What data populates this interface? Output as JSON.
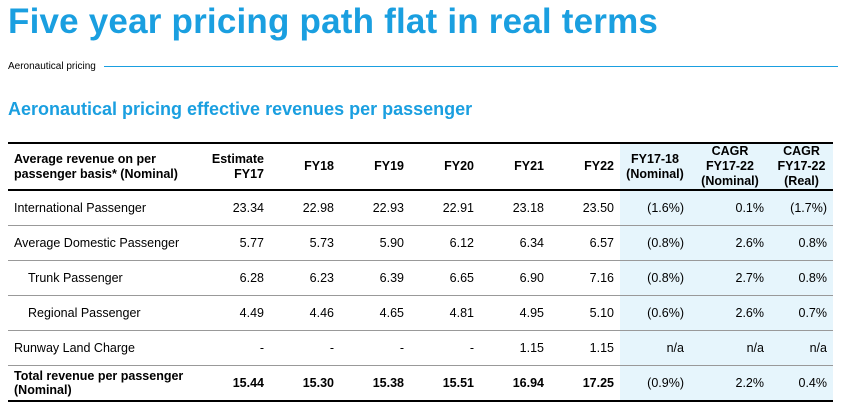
{
  "header": {
    "title": "Five year pricing path flat in real terms",
    "subtitle": "Aeronautical pricing"
  },
  "section": {
    "title": "Aeronautical pricing effective revenues per passenger"
  },
  "colors": {
    "accent": "#1a9fe0",
    "shade": "#e6f5fc"
  },
  "table": {
    "columns": [
      "Average revenue on per passenger basis* (Nominal)",
      "Estimate FY17",
      "FY18",
      "FY19",
      "FY20",
      "FY21",
      "FY22",
      "FY17-18 (Nominal)",
      "CAGR FY17-22 (Nominal)",
      "CAGR FY17-22 (Real)"
    ],
    "rows": [
      {
        "label": "International Passenger",
        "values": [
          "23.34",
          "22.98",
          "22.93",
          "22.91",
          "23.18",
          "23.50",
          "(1.6%)",
          "0.1%",
          "(1.7%)"
        ]
      },
      {
        "label": "Average Domestic Passenger",
        "values": [
          "5.77",
          "5.73",
          "5.90",
          "6.12",
          "6.34",
          "6.57",
          "(0.8%)",
          "2.6%",
          "0.8%"
        ]
      },
      {
        "label": "Trunk Passenger",
        "values": [
          "6.28",
          "6.23",
          "6.39",
          "6.65",
          "6.90",
          "7.16",
          "(0.8%)",
          "2.7%",
          "0.8%"
        ]
      },
      {
        "label": "Regional Passenger",
        "values": [
          "4.49",
          "4.46",
          "4.65",
          "4.81",
          "4.95",
          "5.10",
          "(0.6%)",
          "2.6%",
          "0.7%"
        ]
      },
      {
        "label": "Runway Land Charge",
        "values": [
          "-",
          "-",
          "-",
          "-",
          "1.15",
          "1.15",
          "n/a",
          "n/a",
          "n/a"
        ]
      },
      {
        "label": "Total revenue per passenger (Nominal)",
        "values": [
          "15.44",
          "15.30",
          "15.38",
          "15.51",
          "16.94",
          "17.25",
          "(0.9%)",
          "2.2%",
          "0.4%"
        ]
      }
    ]
  }
}
